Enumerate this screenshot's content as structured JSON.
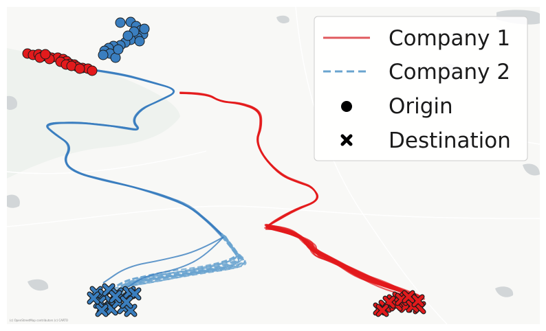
{
  "map": {
    "basemap_colors": {
      "land": "#f8f8f6",
      "water": "#d2d6d8",
      "park": "#eef2ee",
      "road": "#ffffff"
    },
    "attribution": "(c) OpenStreetMap contributors (c) CARTO"
  },
  "legend": {
    "position": "top-right",
    "entries": [
      {
        "label": "Company 1",
        "symbol": "solid-line",
        "color": "#e05a5e"
      },
      {
        "label": "Company 2",
        "symbol": "dashed-line",
        "color": "#6aa4cf"
      },
      {
        "label": "Origin",
        "symbol": "circle-marker",
        "color": "#000000"
      },
      {
        "label": "Destination",
        "symbol": "x-marker",
        "color": "#000000"
      }
    ]
  },
  "companies": [
    {
      "name": "Company 1",
      "color": "#e31a1c",
      "line_style": "solid",
      "origin_points": 22,
      "destination_points": 16
    },
    {
      "name": "Company 2",
      "color": "#3a7ebf",
      "line_style": "dashed",
      "origin_points": 20,
      "destination_points": 18
    }
  ]
}
